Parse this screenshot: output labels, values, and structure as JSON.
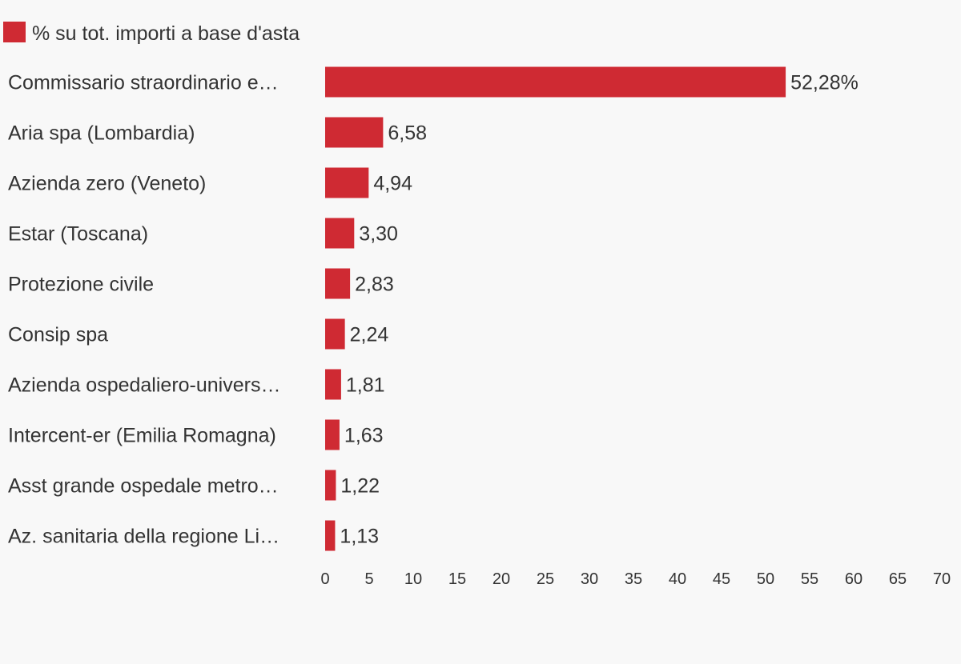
{
  "chart_data": {
    "type": "bar",
    "orientation": "horizontal",
    "legend": {
      "placement": "top-left",
      "entries": [
        {
          "name": "% su tot. importi a base d'asta",
          "color": "#cf2a33"
        }
      ]
    },
    "categories": [
      "Commissario straordinario e…",
      "Aria spa (Lombardia)",
      "Azienda zero (Veneto)",
      "Estar (Toscana)",
      "Protezione civile",
      "Consip spa",
      "Azienda ospedaliero-univers…",
      "Intercent-er (Emilia Romagna)",
      "Asst grande ospedale metro…",
      "Az. sanitaria della regione Li…"
    ],
    "series": [
      {
        "name": "% su tot. importi a base d'asta",
        "color": "#cf2a33",
        "values": [
          52.28,
          6.58,
          4.94,
          3.3,
          2.83,
          2.24,
          1.81,
          1.63,
          1.22,
          1.13
        ]
      }
    ],
    "value_labels": [
      "52,28%",
      "6,58",
      "4,94",
      "3,30",
      "2,83",
      "2,24",
      "1,81",
      "1,63",
      "1,22",
      "1,13"
    ],
    "x_ticks": [
      0,
      5,
      10,
      15,
      20,
      25,
      30,
      35,
      40,
      45,
      50,
      55,
      60,
      65,
      70
    ],
    "x_tick_labels": [
      "0",
      "5",
      "10",
      "15",
      "20",
      "25",
      "30",
      "35",
      "40",
      "45",
      "50",
      "55",
      "60",
      "65",
      "70"
    ],
    "xlim": [
      0,
      70
    ],
    "grid": false,
    "title": "",
    "xlabel": "",
    "ylabel": ""
  }
}
